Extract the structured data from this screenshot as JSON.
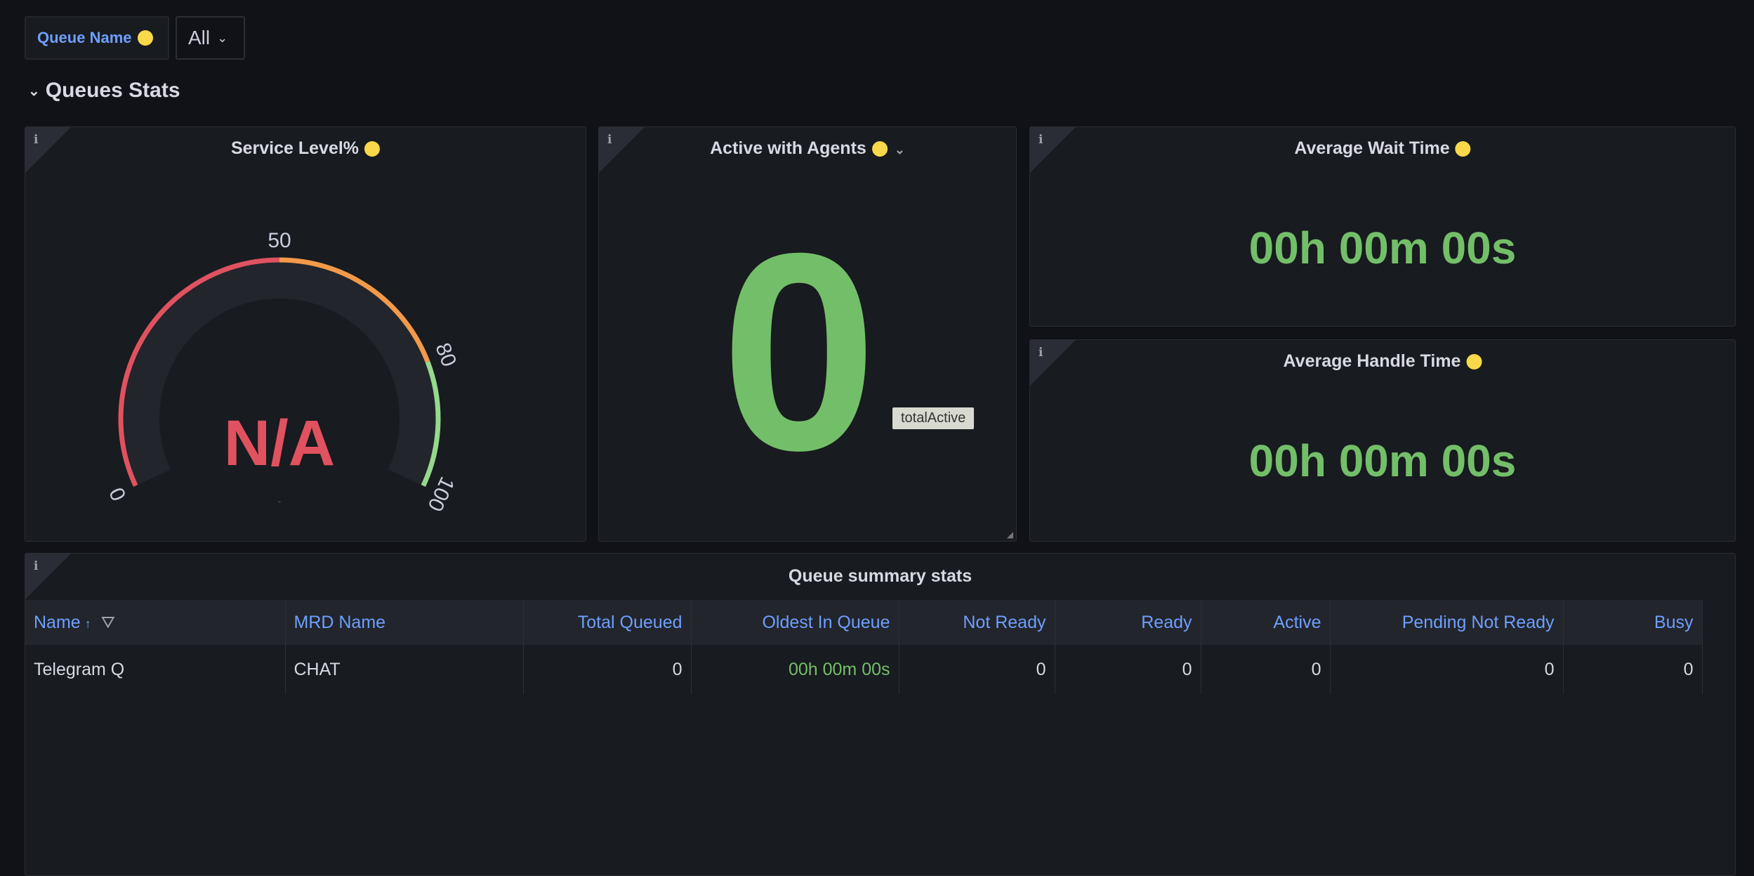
{
  "variables": {
    "label": "Queue Name",
    "value": "All"
  },
  "row": {
    "title": "Queues Stats"
  },
  "panels": {
    "service_level": {
      "title": "Service Level%",
      "value": "N/A",
      "subtext": "-",
      "gauge": {
        "min": 0,
        "max": 100,
        "ticks": [
          "0",
          "50",
          "80",
          "100"
        ],
        "thresholds": [
          {
            "from": 0,
            "to": 50,
            "color": "#e05260"
          },
          {
            "from": 50,
            "to": 80,
            "color": "#f2994a"
          },
          {
            "from": 80,
            "to": 100,
            "color": "#96d98d"
          }
        ]
      }
    },
    "active_agents": {
      "title": "Active with Agents",
      "value": "0",
      "tooltip": "totalActive"
    },
    "avg_wait": {
      "title": "Average Wait Time",
      "value": "00h 00m 00s"
    },
    "avg_handle": {
      "title": "Average Handle Time",
      "value": "00h 00m 00s"
    }
  },
  "table": {
    "title": "Queue summary stats",
    "columns": [
      "Name",
      "MRD Name",
      "Total Queued",
      "Oldest In Queue",
      "Not Ready",
      "Ready",
      "Active",
      "Pending Not Ready",
      "Busy"
    ],
    "sort_indicator": "↑",
    "rows": [
      [
        "Telegram Q",
        "CHAT",
        "0",
        "00h 00m 00s",
        "0",
        "0",
        "0",
        "0",
        "0"
      ]
    ]
  },
  "colors": {
    "accent": "#6e9fff",
    "green": "#73bf69",
    "red": "#e05260",
    "orange": "#f2994a",
    "warning_dot": "#f9d84a"
  }
}
